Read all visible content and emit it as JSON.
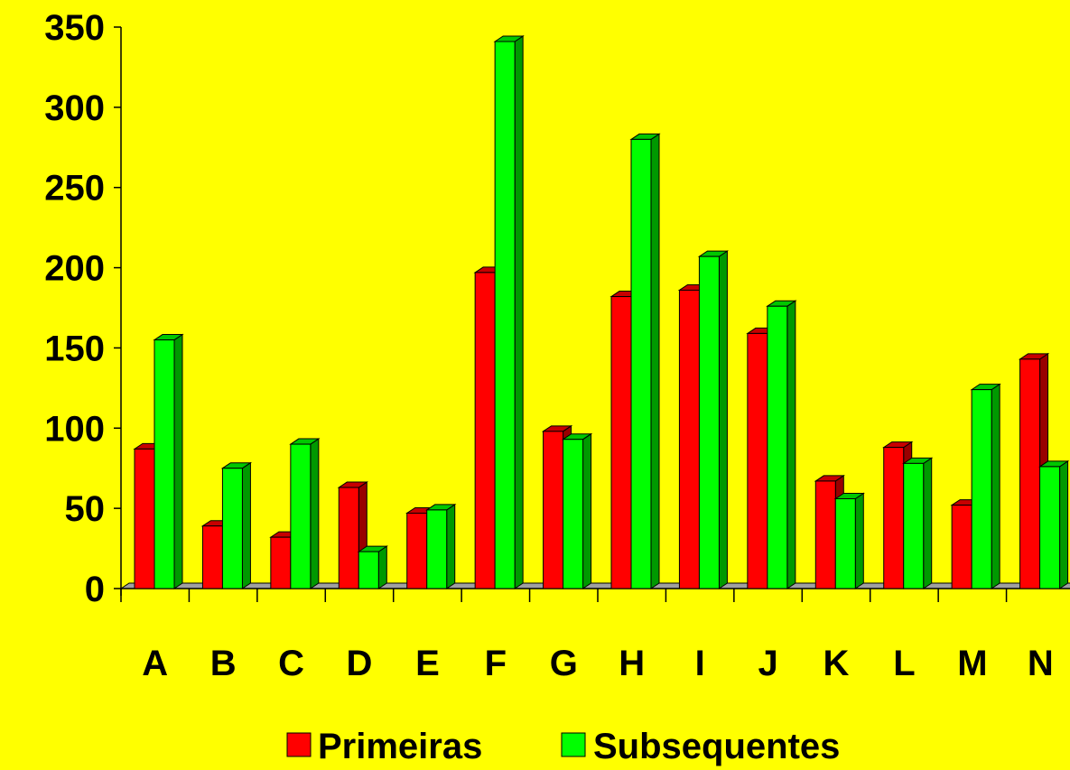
{
  "chart_data": {
    "type": "bar",
    "title": "",
    "xlabel": "",
    "ylabel": "",
    "ylim": [
      0,
      350
    ],
    "yticks": [
      0,
      50,
      100,
      150,
      200,
      250,
      300,
      350
    ],
    "categories": [
      "A",
      "B",
      "C",
      "D",
      "E",
      "F",
      "G",
      "H",
      "I",
      "J",
      "K",
      "L",
      "M",
      "N"
    ],
    "series": [
      {
        "name": "Primeiras",
        "color": "#ff0000",
        "values": [
          87,
          39,
          32,
          63,
          47,
          197,
          98,
          182,
          186,
          159,
          67,
          88,
          52,
          143
        ]
      },
      {
        "name": "Subsequentes",
        "color": "#00ff00",
        "values": [
          155,
          75,
          90,
          23,
          49,
          341,
          93,
          280,
          207,
          176,
          56,
          78,
          124,
          76
        ]
      }
    ],
    "legend": "bottom",
    "grid": false
  }
}
